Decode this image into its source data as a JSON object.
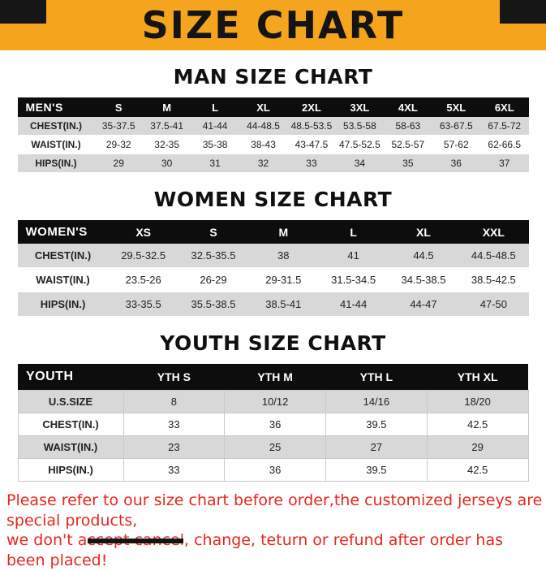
{
  "banner": {
    "title": "SIZE CHART",
    "bg_color": "#F5A51D",
    "corner_color": "#161616",
    "title_color": "#141414"
  },
  "colors": {
    "table_header_bg": "#0d0d0d",
    "table_header_text": "#ffffff",
    "row_alt_bg": "#d8d8d8",
    "footer_text": "#E8261D"
  },
  "sections": [
    {
      "heading": "MAN SIZE CHART",
      "table": {
        "header": [
          "MEN'S",
          "S",
          "M",
          "L",
          "XL",
          "2XL",
          "3XL",
          "4XL",
          "5XL",
          "6XL"
        ],
        "rows": [
          [
            "CHEST(IN.)",
            "35-37.5",
            "37.5-41",
            "41-44",
            "44-48.5",
            "48.5-53.5",
            "53.5-58",
            "58-63",
            "63-67.5",
            "67.5-72"
          ],
          [
            "WAIST(IN.)",
            "29-32",
            "32-35",
            "35-38",
            "38-43",
            "43-47.5",
            "47.5-52.5",
            "52.5-57",
            "57-62",
            "62-66.5"
          ],
          [
            "HIPS(IN.)",
            "29",
            "30",
            "31",
            "32",
            "33",
            "34",
            "35",
            "36",
            "37"
          ]
        ]
      }
    },
    {
      "heading": "WOMEN SIZE CHART",
      "table": {
        "header": [
          "WOMEN'S",
          "XS",
          "S",
          "M",
          "L",
          "XL",
          "XXL"
        ],
        "rows": [
          [
            "CHEST(IN.)",
            "29.5-32.5",
            "32.5-35.5",
            "38",
            "41",
            "44.5",
            "44.5-48.5"
          ],
          [
            "WAIST(IN.)",
            "23.5-26",
            "26-29",
            "29-31.5",
            "31.5-34.5",
            "34.5-38.5",
            "38.5-42.5"
          ],
          [
            "HIPS(IN.)",
            "33-35.5",
            "35.5-38.5",
            "38.5-41",
            "41-44",
            "44-47",
            "47-50"
          ]
        ]
      }
    },
    {
      "heading": "YOUTH SIZE CHART",
      "table": {
        "header": [
          "YOUTH",
          "YTH S",
          "YTH M",
          "YTH L",
          "YTH XL"
        ],
        "rows": [
          [
            "U.S.SIZE",
            "8",
            "10/12",
            "14/16",
            "18/20"
          ],
          [
            "CHEST(IN.)",
            "33",
            "36",
            "39.5",
            "42.5"
          ],
          [
            "WAIST(IN.)",
            "23",
            "25",
            "27",
            "29"
          ],
          [
            "HIPS(IN.)",
            "33",
            "36",
            "39.5",
            "42.5"
          ]
        ]
      }
    }
  ],
  "footer": {
    "lines": [
      "Please refer to our size chart before order,the customized jerseys are special products,",
      "we don't accept cancel, change, teturn or refund after order has been placed!"
    ]
  }
}
